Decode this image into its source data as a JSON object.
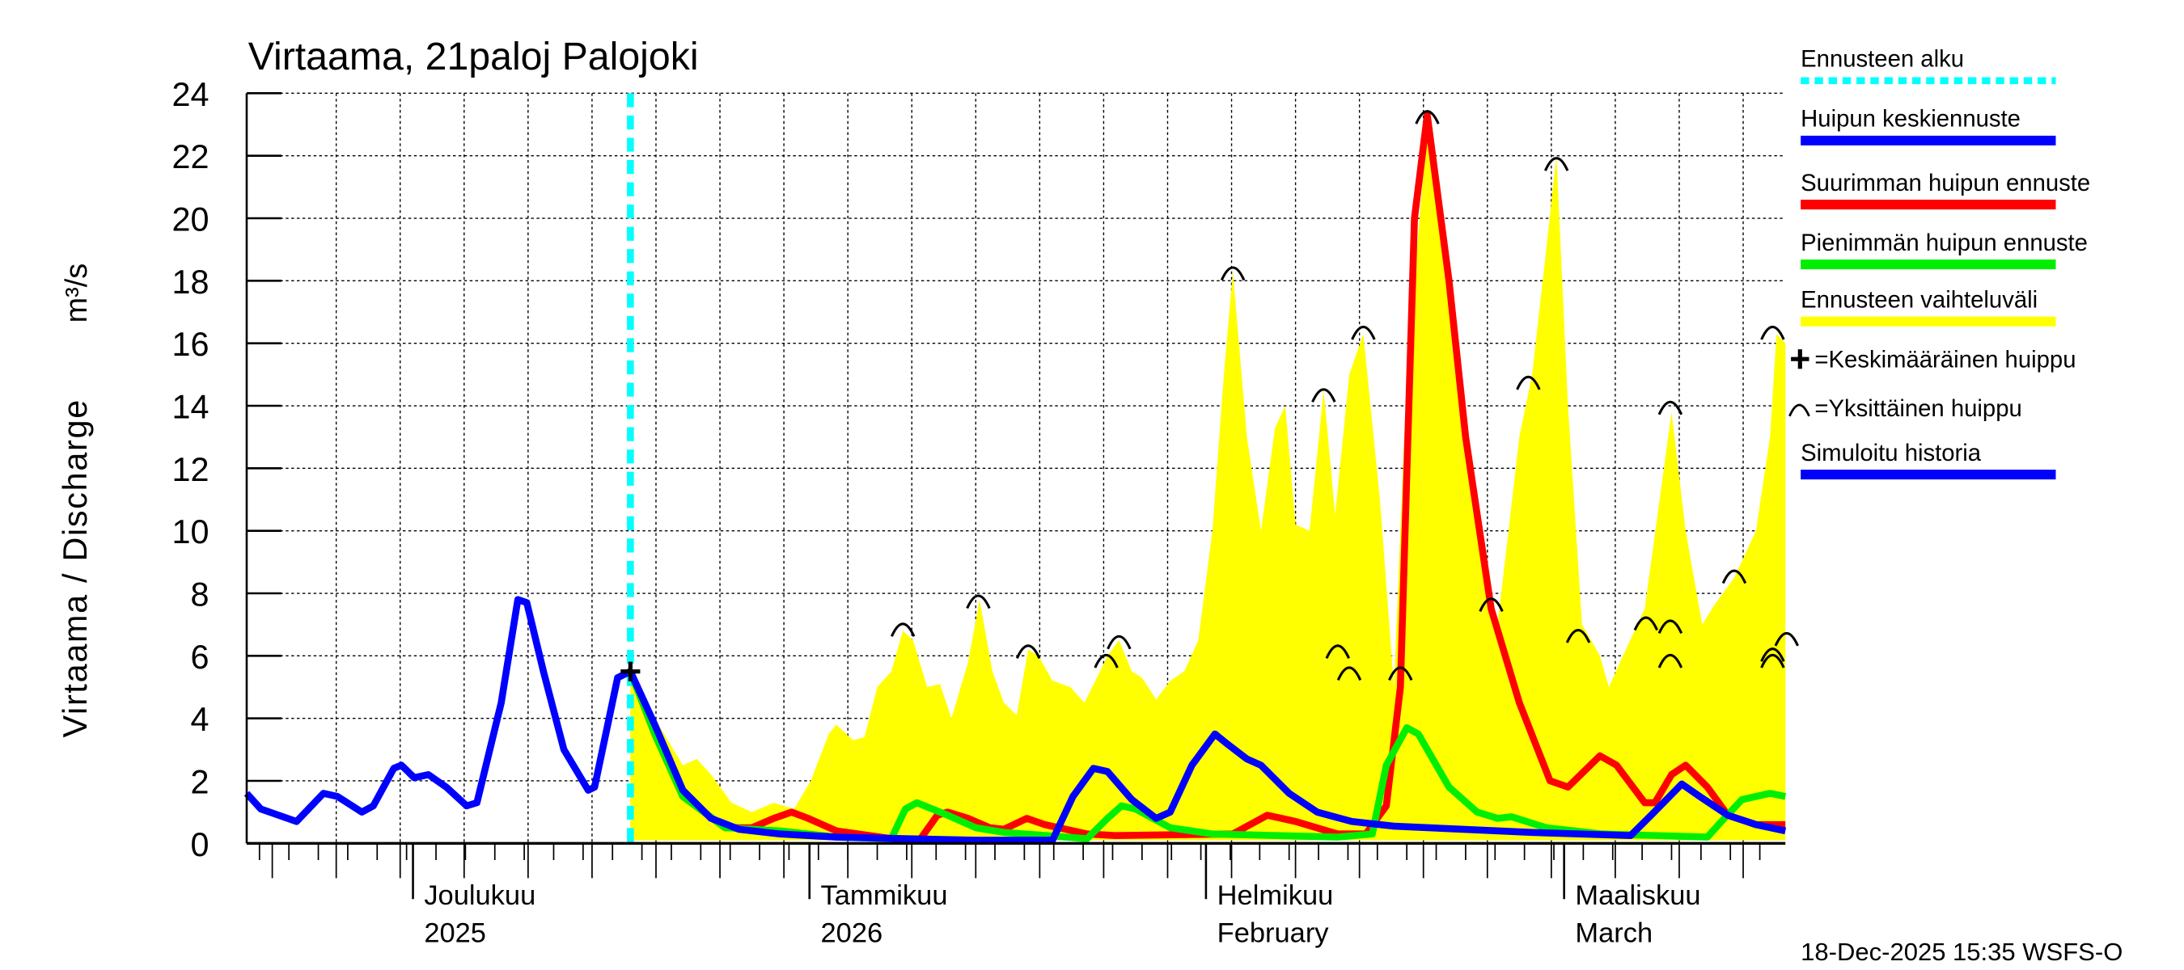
{
  "chart_data": {
    "type": "line",
    "title": "Virtaama, 21paloj Palojoki",
    "ylabel": "Virtaama / Discharge",
    "yunit": "m³/s",
    "ylim": [
      0,
      24
    ],
    "yticks": [
      "0",
      "2",
      "4",
      "6",
      "8",
      "10",
      "12",
      "14",
      "16",
      "18",
      "20",
      "22",
      "24"
    ],
    "xlim_days_from_2025_11_18": [
      0,
      120.3
    ],
    "x_unit": "days since 18-Nov-2025",
    "grid": true,
    "month_labels": [
      {
        "day": 13,
        "line1": "Joulukuu",
        "line2": "2025"
      },
      {
        "day": 44,
        "line1": "Tammikuu",
        "line2": "2026"
      },
      {
        "day": 75,
        "line1": "Helmikuu",
        "line2": "February"
      },
      {
        "day": 103,
        "line1": "Maaliskuu",
        "line2": "March"
      }
    ],
    "forecast_start_day": 30,
    "series": [
      {
        "name": "Ennusteen vaihteluväli",
        "color": "#ffff00",
        "kind": "band",
        "x": [
          30,
          31.9,
          34.1,
          35.2,
          36.3,
          37.9,
          39.5,
          41.2,
          42.8,
          44.1,
          45.5,
          46.1,
          47.4,
          48.3,
          49.3,
          50.4,
          51.3,
          52.1,
          53.2,
          54.2,
          55.1,
          56.4,
          57.3,
          58.3,
          59.2,
          60.2,
          61.1,
          61.9,
          63.0,
          64.4,
          65.5,
          67.3,
          68.2,
          69.2,
          70.0,
          71.1,
          72.2,
          73.3,
          74.4,
          75.5,
          76.4,
          77.1,
          78.2,
          79.3,
          80.4,
          81.2,
          82.0,
          83.1,
          84.2,
          85.1,
          86.2,
          87.3,
          88.6,
          89.7,
          90.7,
          92.3,
          94.0,
          95.6,
          97.8,
          99.5,
          100.5,
          101.6,
          102.4,
          103.3,
          104.4,
          105.8,
          106.5,
          107.6,
          109.3,
          111.4,
          112.5,
          113.8,
          114.7,
          116.3,
          118.0,
          119.1,
          119.6,
          120.3
        ],
        "upper": [
          5.5,
          4,
          2.5,
          2.7,
          2.2,
          1.3,
          1.0,
          1.3,
          1.1,
          2.0,
          3.5,
          3.8,
          3.3,
          3.4,
          5.0,
          5.5,
          6.8,
          6.5,
          5.0,
          5.1,
          4.0,
          5.8,
          7.8,
          5.5,
          4.5,
          4.1,
          6.2,
          6.0,
          5.2,
          5.0,
          4.5,
          6.0,
          6.5,
          5.5,
          5.3,
          4.6,
          5.2,
          5.5,
          6.5,
          10,
          15,
          18.3,
          13,
          10,
          13.3,
          14,
          10.2,
          10,
          14.5,
          10.5,
          15,
          16.3,
          11,
          5,
          15,
          23,
          18,
          12,
          7,
          13,
          15,
          19,
          22,
          14,
          7,
          6,
          5,
          6,
          7.5,
          13.8,
          10,
          7,
          7.6,
          8.5,
          10,
          13,
          16.3,
          16
        ],
        "lower": 0.1
      },
      {
        "name": "Simuloitu historia",
        "color": "#0000ff",
        "kind": "line",
        "x": [
          0,
          1.1,
          3.9,
          6,
          7.1,
          9,
          9.9,
          11.5,
          12.1,
          13.1,
          14.2,
          15.6,
          17.2,
          18,
          19.9,
          21.2,
          21.9,
          23.2,
          24.8,
          26.7,
          27.2,
          29,
          30
        ],
        "y": [
          1.6,
          1.1,
          0.7,
          1.6,
          1.5,
          1.0,
          1.2,
          2.4,
          2.5,
          2.1,
          2.2,
          1.8,
          1.2,
          1.3,
          4.5,
          7.8,
          7.7,
          5.5,
          3.0,
          1.7,
          1.8,
          5.3,
          5.5
        ]
      },
      {
        "name": "Suurimman huipun ennuste",
        "color": "#ff0000",
        "kind": "line",
        "x": [
          30,
          31.9,
          34.1,
          37.4,
          39.5,
          41.2,
          42.6,
          43.9,
          46.1,
          50.4,
          52.6,
          54.0,
          54.8,
          56.4,
          58.1,
          59.2,
          61.0,
          62.4,
          65.7,
          67.9,
          77.1,
          79.8,
          82.0,
          85.3,
          87.5,
          89.1,
          90.2,
          91.3,
          92.3,
          94.0,
          95.3,
          97.3,
          99.5,
          101.9,
          103.3,
          105.8,
          107.1,
          109.3,
          110.1,
          111.4,
          112.5,
          114.2,
          115.8,
          118.0,
          120.3
        ],
        "y": [
          5.5,
          3.5,
          1.5,
          0.5,
          0.5,
          0.8,
          1.0,
          0.8,
          0.4,
          0.15,
          0.1,
          0.9,
          1.0,
          0.8,
          0.5,
          0.45,
          0.8,
          0.6,
          0.3,
          0.25,
          0.3,
          0.9,
          0.7,
          0.3,
          0.3,
          1.2,
          5.0,
          20,
          23.3,
          18,
          13,
          7.5,
          4.5,
          2.0,
          1.8,
          2.8,
          2.5,
          1.3,
          1.3,
          2.2,
          2.5,
          1.8,
          0.9,
          0.6,
          0.6
        ]
      },
      {
        "name": "Pienimmän huipun ennuste",
        "color": "#00ee00",
        "kind": "line",
        "x": [
          30,
          31.9,
          34.1,
          37.4,
          41.7,
          46.1,
          50.4,
          51.5,
          52.4,
          54.8,
          57.0,
          59.2,
          65.7,
          67.3,
          68.4,
          69.5,
          72.2,
          75.5,
          85.3,
          88.0,
          89.1,
          90.7,
          91.6,
          94.0,
          96.2,
          97.8,
          98.9,
          101.6,
          106.0,
          114.2,
          115.3,
          116.9,
          119.1,
          120.3
        ],
        "y": [
          5.5,
          3.5,
          1.5,
          0.5,
          0.4,
          0.2,
          0.15,
          1.1,
          1.3,
          0.9,
          0.5,
          0.35,
          0.15,
          0.8,
          1.2,
          1.1,
          0.5,
          0.3,
          0.2,
          0.3,
          2.5,
          3.7,
          3.5,
          1.8,
          1.0,
          0.8,
          0.85,
          0.5,
          0.3,
          0.2,
          0.7,
          1.4,
          1.6,
          1.5
        ]
      },
      {
        "name": "Huipun keskiennuste",
        "color": "#0000ff",
        "kind": "line",
        "x": [
          30,
          31.9,
          34.1,
          36.3,
          38.5,
          41.7,
          46.1,
          51.5,
          57.0,
          63.0,
          64.6,
          66.2,
          67.3,
          69.2,
          71.1,
          72.2,
          73.9,
          75.7,
          76.6,
          78.2,
          79.3,
          81.5,
          83.7,
          86.4,
          89.7,
          95.1,
          100.5,
          108.2,
          109.8,
          112.2,
          113.6,
          115.8,
          118.0,
          120.3
        ],
        "y": [
          5.5,
          3.8,
          1.7,
          0.8,
          0.45,
          0.3,
          0.2,
          0.15,
          0.1,
          0.1,
          1.5,
          2.4,
          2.3,
          1.4,
          0.8,
          1.0,
          2.5,
          3.5,
          3.2,
          2.7,
          2.5,
          1.6,
          1.0,
          0.7,
          0.55,
          0.45,
          0.35,
          0.25,
          0.9,
          1.9,
          1.5,
          0.9,
          0.6,
          0.4
        ]
      }
    ],
    "mean_peak": {
      "x": 30,
      "y": 5.5
    },
    "individual_peaks": {
      "x": [
        51.3,
        57.2,
        61.1,
        67.2,
        68.2,
        77.1,
        84.2,
        85.3,
        86.2,
        87.3,
        90.2,
        92.3,
        97.3,
        100.2,
        102.4,
        104.1,
        109.4,
        111.3,
        111.3,
        111.3,
        116.3,
        119.3,
        119.3,
        119.3,
        120.4
      ],
      "y": [
        6.8,
        7.7,
        6.1,
        5.8,
        6.4,
        18.2,
        14.3,
        6.1,
        5.4,
        16.3,
        5.4,
        23.2,
        7.6,
        14.7,
        21.7,
        6.6,
        7.0,
        6.9,
        13.9,
        5.8,
        8.5,
        16.3,
        6.0,
        5.8,
        6.5
      ]
    },
    "legend": {
      "placement": "right",
      "items": [
        {
          "label": "Ennusteen alku",
          "color": "#00ffff",
          "style": "dotted"
        },
        {
          "label": "Huipun keskiennuste",
          "color": "#0000ff",
          "style": "solid"
        },
        {
          "label": "Suurimman huipun ennuste",
          "color": "#ff0000",
          "style": "solid"
        },
        {
          "label": "Pienimmän huipun ennuste",
          "color": "#00ee00",
          "style": "solid"
        },
        {
          "label": "Ennusteen vaihteluväli",
          "color": "#ffff00",
          "style": "solid"
        },
        {
          "label": "=Keskimääräinen huippu",
          "symbol": "plus"
        },
        {
          "label": "=Yksittäinen huippu",
          "symbol": "arc"
        },
        {
          "label": "Simuloitu historia",
          "color": "#0000ff",
          "style": "solid"
        }
      ]
    },
    "footer": "18-Dec-2025 15:35 WSFS-O"
  }
}
